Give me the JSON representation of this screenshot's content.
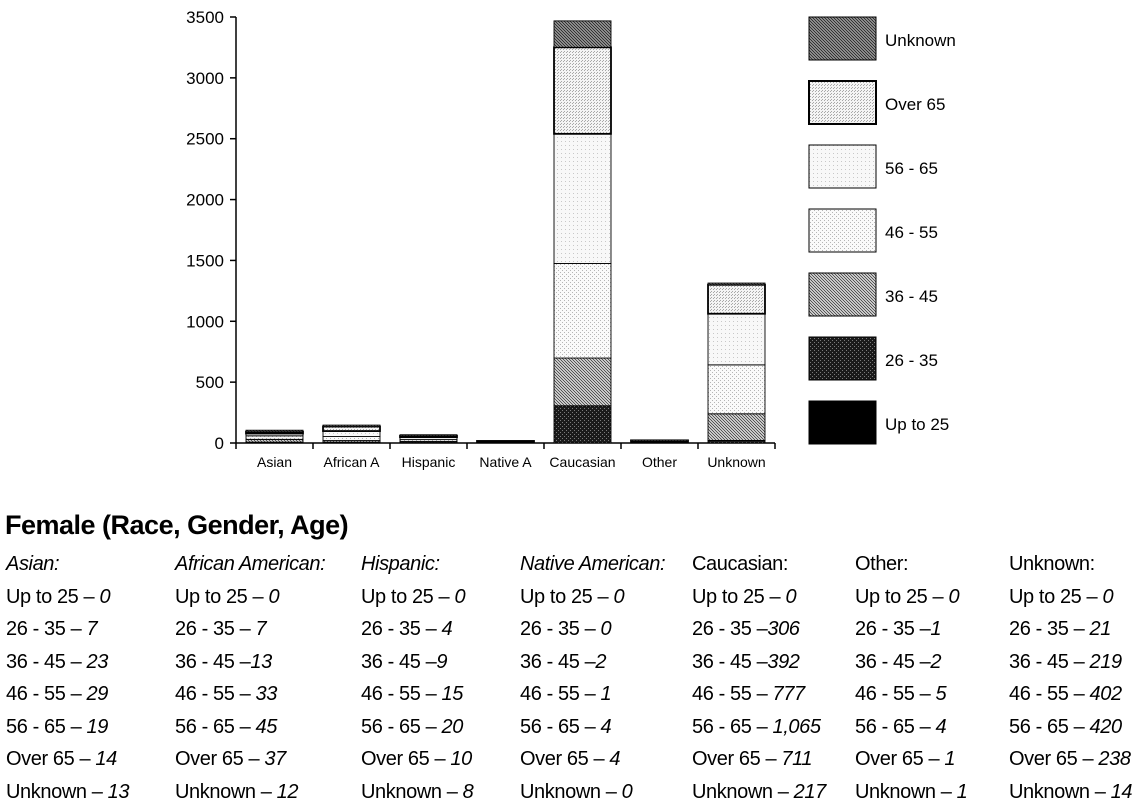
{
  "chart_data": {
    "type": "bar",
    "stacked": true,
    "title": "",
    "xlabel": "",
    "ylabel": "",
    "ylim": [
      0,
      3500
    ],
    "yticks": [
      0,
      500,
      1000,
      1500,
      2000,
      2500,
      3000,
      3500
    ],
    "categories": [
      "Asian",
      "African A",
      "Hispanic",
      "Native A",
      "Caucasian",
      "Other",
      "Unknown"
    ],
    "legend_position": "right",
    "series": [
      {
        "name": "Up to 25",
        "values": [
          0,
          0,
          0,
          0,
          0,
          0,
          0
        ]
      },
      {
        "name": "26 - 35",
        "values": [
          7,
          7,
          4,
          0,
          306,
          1,
          21
        ]
      },
      {
        "name": "36 - 45",
        "values": [
          23,
          13,
          9,
          2,
          392,
          2,
          219
        ]
      },
      {
        "name": "46 - 55",
        "values": [
          29,
          33,
          15,
          1,
          777,
          5,
          402
        ]
      },
      {
        "name": "56 - 65",
        "values": [
          19,
          45,
          20,
          4,
          1065,
          4,
          420
        ]
      },
      {
        "name": "Over 65",
        "values": [
          14,
          37,
          10,
          4,
          711,
          1,
          238
        ]
      },
      {
        "name": "Unknown",
        "values": [
          13,
          12,
          8,
          0,
          217,
          1,
          14
        ]
      }
    ],
    "pattern_colors": {
      "Up to 25": "#000000",
      "26 - 35": "#2a2a2a",
      "36 - 45": "#9a9a9a",
      "46 - 55": "#e6e6e6",
      "56 - 65": "#f1f1f1",
      "Over 65": "#dddddd",
      "Unknown": "#6f6f6f"
    }
  },
  "table": {
    "title": "Female (Race, Gender, Age)",
    "columns": [
      {
        "head": "Asian:",
        "rows": [
          {
            "label": "Up to 25 – ",
            "value": "0"
          },
          {
            "label": "26 - 35 – ",
            "value": "7"
          },
          {
            "label": "36 - 45 – ",
            "value": "23"
          },
          {
            "label": "46 - 55 – ",
            "value": "29"
          },
          {
            "label": "56 - 65 – ",
            "value": "19"
          },
          {
            "label": "Over 65 – ",
            "value": "14"
          },
          {
            "label": "Unknown – ",
            "value": "13"
          }
        ]
      },
      {
        "head": "African American:",
        "rows": [
          {
            "label": "Up to 25 – ",
            "value": "0"
          },
          {
            "label": "26 - 35 – ",
            "value": "7"
          },
          {
            "label": "36 - 45 –",
            "value": "13"
          },
          {
            "label": "46 - 55 – ",
            "value": "33"
          },
          {
            "label": "56 - 65 – ",
            "value": "45"
          },
          {
            "label": "Over 65 – ",
            "value": "37"
          },
          {
            "label": "Unknown – ",
            "value": "12"
          }
        ]
      },
      {
        "head": "Hispanic:",
        "rows": [
          {
            "label": "Up to 25 – ",
            "value": "0"
          },
          {
            "label": "26 - 35 – ",
            "value": "4"
          },
          {
            "label": "36 - 45 –",
            "value": "9"
          },
          {
            "label": "46 - 55 – ",
            "value": "15"
          },
          {
            "label": "56 - 65 – ",
            "value": "20"
          },
          {
            "label": "Over 65 – ",
            "value": "10"
          },
          {
            "label": "Unknown – ",
            "value": "8"
          }
        ]
      },
      {
        "head": "Native American:",
        "rows": [
          {
            "label": "Up to 25 – ",
            "value": "0"
          },
          {
            "label": "26 - 35 – ",
            "value": "0"
          },
          {
            "label": "36 - 45 –",
            "value": "2"
          },
          {
            "label": "46 - 55 – ",
            "value": "1"
          },
          {
            "label": "56 - 65 – ",
            "value": "4"
          },
          {
            "label": "Over 65 – ",
            "value": "4"
          },
          {
            "label": "Unknown – ",
            "value": "0"
          }
        ]
      },
      {
        "head": "Caucasian:",
        "rows": [
          {
            "label": "Up to 25 – ",
            "value": "0"
          },
          {
            "label": "26 - 35 –",
            "value": "306"
          },
          {
            "label": "36 - 45 –",
            "value": "392"
          },
          {
            "label": "46 - 55 – ",
            "value": "777"
          },
          {
            "label": "56 - 65 – ",
            "value": "1,065"
          },
          {
            "label": "Over 65 – ",
            "value": "711"
          },
          {
            "label": "Unknown – ",
            "value": "217"
          }
        ]
      },
      {
        "head": "Other:",
        "rows": [
          {
            "label": "Up to 25 – ",
            "value": "0"
          },
          {
            "label": "26 - 35 –",
            "value": "1"
          },
          {
            "label": "36 - 45 –",
            "value": "2"
          },
          {
            "label": "46 - 55 – ",
            "value": "5"
          },
          {
            "label": "56 - 65 – ",
            "value": "4"
          },
          {
            "label": "Over 65 – ",
            "value": "1"
          },
          {
            "label": "Unknown – ",
            "value": "1"
          }
        ]
      },
      {
        "head": "Unknown:",
        "rows": [
          {
            "label": "Up to 25 – ",
            "value": "0"
          },
          {
            "label": "26 - 35 – ",
            "value": "21"
          },
          {
            "label": "36 - 45 – ",
            "value": "219"
          },
          {
            "label": "46 - 55 – ",
            "value": "402"
          },
          {
            "label": "56 - 65 – ",
            "value": "420"
          },
          {
            "label": "Over 65 – ",
            "value": "238"
          },
          {
            "label": "Unknown – ",
            "value": "14"
          }
        ]
      }
    ]
  }
}
